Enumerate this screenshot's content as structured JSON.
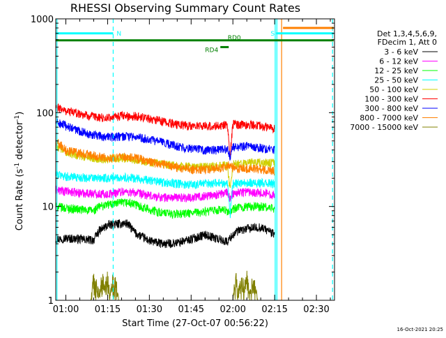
{
  "chart_data": {
    "type": "line",
    "title": "RHESSI Observing Summary Count Rates",
    "xlabel": "Start Time (27-Oct-07 00:56:22)",
    "ylabel": "Count Rate (s",
    "ylabel_sup": "-1",
    "ylabel_mid": " detector",
    "ylabel_sup2": "-1",
    "ylabel_end": ")",
    "y_scale": "log",
    "ylim": [
      1,
      1000
    ],
    "xlim_minutes": [
      56.37,
      156.5
    ],
    "x_ticks": [
      {
        "label": "01:00",
        "minute": 60
      },
      {
        "label": "01:15",
        "minute": 75
      },
      {
        "label": "01:30",
        "minute": 90
      },
      {
        "label": "01:45",
        "minute": 105
      },
      {
        "label": "02:00",
        "minute": 120
      },
      {
        "label": "02:15",
        "minute": 135
      },
      {
        "label": "02:30",
        "minute": 150
      }
    ],
    "y_ticks": [
      {
        "label": "1",
        "value": 1
      },
      {
        "label": "10",
        "value": 10
      },
      {
        "label": "100",
        "value": 100
      },
      {
        "label": "1000",
        "value": 1000
      }
    ],
    "legend_header": [
      "Det 1,3,4,5,6,9,",
      "FDecim 1, Att 0"
    ],
    "legend_position": "right",
    "timestamp": "16-Oct-2021 20:25",
    "series": [
      {
        "name": "3 - 6 keV",
        "color": "#000000",
        "x": [
          56.4,
          60,
          65,
          70,
          72,
          75,
          78,
          82,
          85,
          90,
          95,
          100,
          105,
          110,
          115,
          118,
          120,
          122,
          125,
          130,
          133,
          135
        ],
        "y": [
          4.5,
          4.6,
          4.5,
          4.4,
          5.5,
          6.3,
          6.5,
          6.6,
          5.2,
          4.3,
          4.0,
          4.1,
          4.5,
          5.0,
          4.5,
          4.2,
          5.0,
          5.5,
          5.8,
          6.0,
          5.5,
          5.0
        ]
      },
      {
        "name": "6 - 12 keV",
        "color": "#ff00ff",
        "x": [
          56.4,
          60,
          65,
          70,
          75,
          80,
          85,
          90,
          95,
          100,
          105,
          110,
          115,
          118,
          119,
          120,
          125,
          130,
          135
        ],
        "y": [
          15,
          14.5,
          14,
          13.8,
          13.5,
          14.5,
          14,
          13,
          12.5,
          12.5,
          12.5,
          13,
          13.5,
          14,
          12,
          14,
          14.5,
          14,
          13.5
        ]
      },
      {
        "name": "12 - 25 keV",
        "color": "#00ff00",
        "x": [
          56.4,
          60,
          65,
          70,
          72,
          75,
          78,
          82,
          85,
          90,
          95,
          100,
          105,
          110,
          115,
          118,
          119,
          120,
          125,
          130,
          135
        ],
        "y": [
          10,
          9.6,
          9.3,
          9.0,
          10,
          10.5,
          10.8,
          11,
          10.5,
          9.3,
          8.5,
          8.3,
          8.5,
          8.8,
          9.2,
          9.0,
          8.5,
          9.5,
          10,
          10,
          9.5
        ]
      },
      {
        "name": "25 - 50 keV",
        "color": "#00ffff",
        "x": [
          56.4,
          60,
          65,
          70,
          75,
          80,
          85,
          90,
          95,
          100,
          105,
          110,
          115,
          118,
          119,
          120,
          125,
          130,
          135
        ],
        "y": [
          22,
          21,
          20.5,
          20,
          20,
          20.5,
          20,
          19,
          18,
          17.5,
          17.2,
          17.5,
          18,
          17.5,
          8,
          17.5,
          18,
          17.8,
          17.5
        ]
      },
      {
        "name": "50 - 100 keV",
        "color": "#d0d000",
        "x": [
          56.4,
          58,
          60,
          65,
          70,
          75,
          80,
          85,
          90,
          95,
          100,
          105,
          110,
          115,
          118,
          119,
          120,
          125,
          130,
          135
        ],
        "y": [
          45,
          42,
          38,
          35,
          33,
          32,
          33,
          32,
          30,
          28,
          27,
          26.5,
          26.5,
          27,
          27.5,
          14,
          28,
          29,
          29.5,
          29
        ]
      },
      {
        "name": "100 - 300 keV",
        "color": "#ff0000",
        "x": [
          56.4,
          60,
          65,
          70,
          75,
          80,
          85,
          90,
          95,
          100,
          105,
          110,
          115,
          118,
          119,
          120,
          125,
          130,
          135
        ],
        "y": [
          115,
          105,
          98,
          90,
          88,
          92,
          92,
          87,
          80,
          75,
          72,
          72,
          72,
          75,
          30,
          75,
          75,
          72,
          68
        ]
      },
      {
        "name": "300 - 800 keV",
        "color": "#0000ff",
        "x": [
          56.4,
          60,
          65,
          70,
          75,
          80,
          85,
          90,
          95,
          100,
          105,
          110,
          115,
          118,
          119,
          120,
          125,
          130,
          135
        ],
        "y": [
          80,
          72,
          64,
          58,
          55,
          56,
          55,
          52,
          48,
          44,
          41,
          40,
          40,
          41,
          34,
          43,
          44,
          42,
          40
        ]
      },
      {
        "name": "800 - 7000 keV",
        "color": "#ff8000",
        "x": [
          56.4,
          58,
          60,
          65,
          70,
          75,
          80,
          85,
          90,
          95,
          100,
          105,
          110,
          115,
          118,
          119,
          120,
          125,
          130,
          135
        ],
        "y": [
          50,
          46,
          40,
          37,
          35,
          33,
          34,
          33,
          30,
          28,
          26,
          25,
          25,
          25.5,
          27,
          28,
          26,
          25.5,
          25,
          24
        ]
      },
      {
        "name": "7000 - 15000 keV",
        "color": "#808000",
        "x": [
          57,
          69,
          70,
          72,
          73,
          74,
          75,
          76,
          77,
          78,
          79,
          80,
          120,
          121,
          122,
          123,
          124,
          125,
          126,
          127,
          128,
          129
        ],
        "y": [
          1,
          1,
          2,
          1.2,
          2,
          1.5,
          2,
          1.2,
          2,
          1.8,
          1,
          1,
          1,
          2,
          1.3,
          2,
          1.5,
          2,
          1.2,
          2,
          1.5,
          1
        ]
      }
    ],
    "flag_bars": [
      {
        "label": "",
        "color": "#00ffff",
        "x_start": 56.4,
        "x_end": 77.0,
        "value": 700
      },
      {
        "label": "N",
        "color": "#00ffff",
        "x_start": 77.0,
        "x_end": 77.0,
        "value": 700
      },
      {
        "label": "S",
        "color": "#00ffff",
        "x_start": 135.5,
        "x_end": 156.2,
        "value": 700
      },
      {
        "label": "",
        "color": "#ff8000",
        "x_start": 138.0,
        "x_end": 156.2,
        "value": 800
      },
      {
        "label": "RD0",
        "color": "#008000",
        "x_start": 56.4,
        "x_end": 156.2,
        "value": 590
      },
      {
        "label": "RD4",
        "color": "#008000",
        "x_start": 115.5,
        "x_end": 118.5,
        "value": 500
      }
    ],
    "event_lines": [
      {
        "color": "#00ffff",
        "style": "solid",
        "minute": 56.8
      },
      {
        "color": "#00ffff",
        "style": "dashed",
        "minute": 77.0
      },
      {
        "color": "#00ffff",
        "style": "solid",
        "minute": 135.2
      },
      {
        "color": "#00ffff",
        "style": "solid",
        "minute": 135.8
      },
      {
        "color": "#ff8000",
        "style": "solid",
        "minute": 137.5
      },
      {
        "color": "#00ffff",
        "style": "dashed",
        "minute": 155.8
      }
    ]
  }
}
